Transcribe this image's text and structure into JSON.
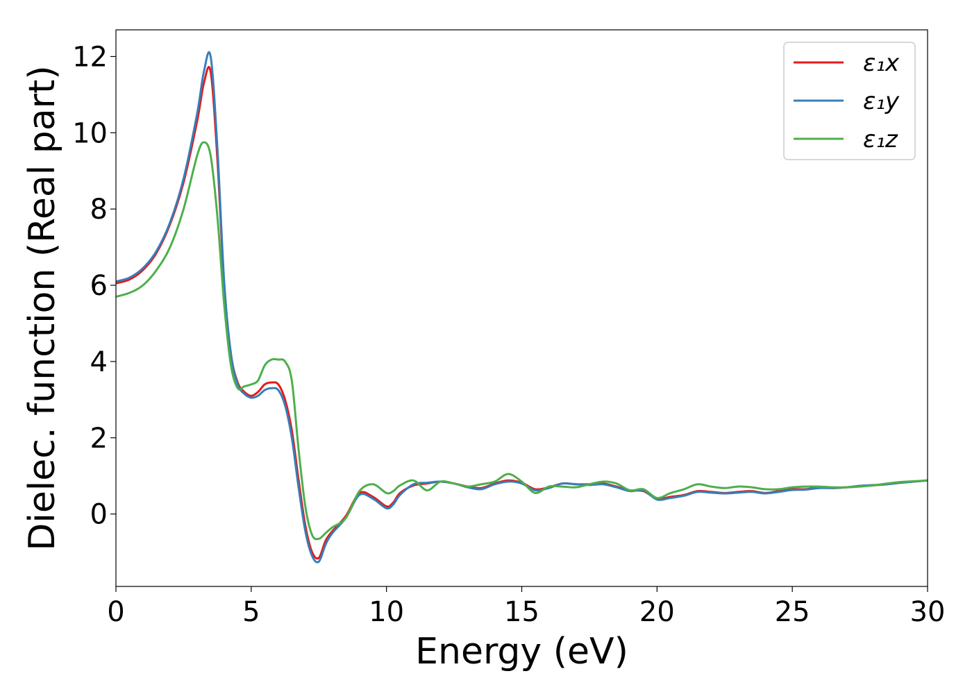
{
  "chart_data": {
    "type": "line",
    "title": "",
    "xlabel": "Energy (eV)",
    "ylabel": "Dielec. function (Real part)",
    "xlim": [
      0,
      30
    ],
    "ylim": [
      -1.9,
      12.7
    ],
    "xticks": [
      0,
      5,
      10,
      15,
      20,
      25,
      30
    ],
    "xtick_labels": [
      "0",
      "5",
      "10",
      "15",
      "20",
      "25",
      "30"
    ],
    "yticks": [
      0,
      2,
      4,
      6,
      8,
      10,
      12
    ],
    "ytick_labels": [
      "0",
      "2",
      "4",
      "6",
      "8",
      "10",
      "12"
    ],
    "grid": false,
    "legend_position": "top-right",
    "series": [
      {
        "name": "ε₁x",
        "legend_label": "ε₁x",
        "color": "#e41a1c",
        "x": [
          0,
          0.5,
          1.0,
          1.5,
          2.0,
          2.5,
          3.0,
          3.25,
          3.5,
          3.75,
          4.0,
          4.25,
          4.5,
          4.75,
          5.0,
          5.25,
          5.5,
          5.75,
          6.0,
          6.25,
          6.5,
          6.75,
          7.0,
          7.25,
          7.5,
          7.75,
          8.0,
          8.5,
          9.0,
          9.5,
          10.0,
          10.25,
          10.5,
          11.0,
          11.5,
          12.0,
          12.5,
          13.0,
          13.5,
          14.0,
          14.5,
          15.0,
          15.5,
          16.0,
          16.5,
          17.0,
          17.5,
          18.0,
          18.5,
          19.0,
          19.5,
          20.0,
          20.5,
          21.0,
          21.5,
          22.0,
          22.5,
          23.0,
          23.5,
          24.0,
          24.5,
          25.0,
          25.5,
          26.0,
          26.5,
          27.0,
          27.5,
          28.0,
          28.5,
          29.0,
          29.5,
          30.0
        ],
        "values": [
          6.05,
          6.15,
          6.4,
          6.85,
          7.6,
          8.7,
          10.3,
          11.3,
          11.6,
          9.3,
          6.0,
          4.2,
          3.45,
          3.2,
          3.1,
          3.2,
          3.4,
          3.45,
          3.4,
          3.0,
          2.2,
          0.9,
          -0.3,
          -1.0,
          -1.15,
          -0.7,
          -0.45,
          -0.05,
          0.55,
          0.45,
          0.2,
          0.3,
          0.55,
          0.75,
          0.8,
          0.85,
          0.8,
          0.72,
          0.68,
          0.8,
          0.88,
          0.82,
          0.65,
          0.7,
          0.8,
          0.78,
          0.78,
          0.8,
          0.72,
          0.62,
          0.6,
          0.4,
          0.45,
          0.5,
          0.6,
          0.58,
          0.55,
          0.58,
          0.6,
          0.55,
          0.6,
          0.65,
          0.65,
          0.7,
          0.68,
          0.7,
          0.73,
          0.75,
          0.78,
          0.82,
          0.85,
          0.88
        ]
      },
      {
        "name": "ε₁y",
        "legend_label": "ε₁y",
        "color": "#377eb8",
        "x": [
          0,
          0.5,
          1.0,
          1.5,
          2.0,
          2.5,
          3.0,
          3.25,
          3.5,
          3.75,
          4.0,
          4.25,
          4.5,
          4.75,
          5.0,
          5.25,
          5.5,
          5.75,
          6.0,
          6.25,
          6.5,
          6.75,
          7.0,
          7.25,
          7.5,
          7.75,
          8.0,
          8.5,
          9.0,
          9.5,
          10.0,
          10.25,
          10.5,
          11.0,
          11.5,
          12.0,
          12.5,
          13.0,
          13.5,
          14.0,
          14.5,
          15.0,
          15.5,
          16.0,
          16.5,
          17.0,
          17.5,
          18.0,
          18.5,
          19.0,
          19.5,
          20.0,
          20.5,
          21.0,
          21.5,
          22.0,
          22.5,
          23.0,
          23.5,
          24.0,
          24.5,
          25.0,
          25.5,
          26.0,
          26.5,
          27.0,
          27.5,
          28.0,
          28.5,
          29.0,
          29.5,
          30.0
        ],
        "values": [
          6.1,
          6.2,
          6.45,
          6.9,
          7.65,
          8.8,
          10.5,
          11.6,
          12.0,
          9.6,
          6.1,
          4.2,
          3.4,
          3.15,
          3.05,
          3.1,
          3.25,
          3.3,
          3.25,
          2.85,
          2.0,
          0.7,
          -0.45,
          -1.1,
          -1.25,
          -0.8,
          -0.5,
          -0.1,
          0.5,
          0.4,
          0.15,
          0.25,
          0.5,
          0.78,
          0.82,
          0.85,
          0.8,
          0.7,
          0.65,
          0.78,
          0.85,
          0.8,
          0.62,
          0.68,
          0.8,
          0.78,
          0.76,
          0.78,
          0.7,
          0.6,
          0.62,
          0.38,
          0.42,
          0.48,
          0.58,
          0.56,
          0.54,
          0.56,
          0.58,
          0.54,
          0.58,
          0.63,
          0.64,
          0.68,
          0.68,
          0.7,
          0.74,
          0.76,
          0.78,
          0.82,
          0.85,
          0.88
        ]
      },
      {
        "name": "ε₁z",
        "legend_label": "ε₁z",
        "color": "#4daf4a",
        "x": [
          0,
          0.5,
          1.0,
          1.5,
          2.0,
          2.5,
          3.0,
          3.25,
          3.5,
          3.75,
          4.0,
          4.25,
          4.5,
          4.75,
          5.0,
          5.25,
          5.5,
          5.75,
          6.0,
          6.25,
          6.5,
          6.75,
          7.0,
          7.25,
          7.5,
          7.75,
          8.0,
          8.5,
          9.0,
          9.5,
          10.0,
          10.25,
          10.5,
          11.0,
          11.5,
          12.0,
          12.5,
          13.0,
          13.5,
          14.0,
          14.5,
          15.0,
          15.5,
          16.0,
          16.5,
          17.0,
          17.5,
          18.0,
          18.5,
          19.0,
          19.5,
          20.0,
          20.5,
          21.0,
          21.5,
          22.0,
          22.5,
          23.0,
          23.5,
          24.0,
          24.5,
          25.0,
          25.5,
          26.0,
          26.5,
          27.0,
          27.5,
          28.0,
          28.5,
          29.0,
          29.5,
          30.0
        ],
        "values": [
          5.7,
          5.8,
          6.0,
          6.4,
          7.0,
          8.0,
          9.4,
          9.75,
          9.4,
          7.8,
          5.5,
          3.9,
          3.3,
          3.35,
          3.4,
          3.5,
          3.9,
          4.05,
          4.05,
          4.0,
          3.5,
          1.7,
          0.2,
          -0.55,
          -0.65,
          -0.5,
          -0.35,
          -0.1,
          0.6,
          0.78,
          0.55,
          0.6,
          0.75,
          0.88,
          0.62,
          0.85,
          0.8,
          0.72,
          0.78,
          0.85,
          1.05,
          0.85,
          0.55,
          0.72,
          0.72,
          0.7,
          0.78,
          0.85,
          0.8,
          0.62,
          0.65,
          0.42,
          0.55,
          0.65,
          0.78,
          0.72,
          0.68,
          0.72,
          0.7,
          0.65,
          0.65,
          0.7,
          0.72,
          0.72,
          0.7,
          0.7,
          0.72,
          0.75,
          0.8,
          0.84,
          0.86,
          0.88
        ]
      }
    ]
  }
}
